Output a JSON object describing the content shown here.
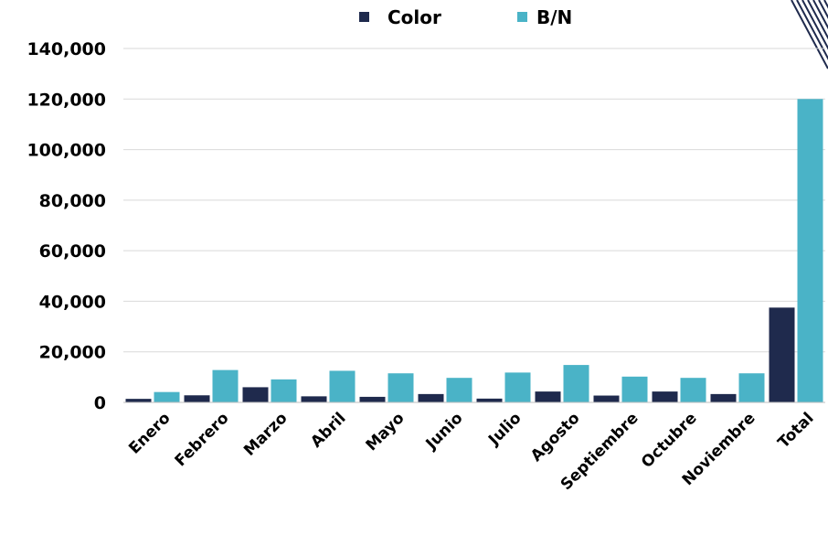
{
  "chart_data": {
    "type": "bar",
    "categories": [
      "Enero",
      "Febrero",
      "Marzo",
      "Abril",
      "Mayo",
      "Junio",
      "Julio",
      "Agosto",
      "Septiembre",
      "Octubre",
      "Noviembre",
      "Total"
    ],
    "series": [
      {
        "name": "Color",
        "color": "#1f2a4d",
        "values": [
          1400,
          2800,
          6000,
          2400,
          2200,
          3300,
          1500,
          4300,
          2700,
          4300,
          3300,
          37500
        ]
      },
      {
        "name": "B/N",
        "color": "#4ab3c7",
        "values": [
          4100,
          12800,
          9100,
          12500,
          11500,
          9700,
          11800,
          14800,
          10200,
          9700,
          11500,
          120000
        ]
      }
    ],
    "yticks": [
      "0",
      "20,000",
      "40,000",
      "60,000",
      "80,000",
      "100,000",
      "120,000",
      "140,000"
    ],
    "ylim": [
      0,
      140000
    ],
    "grid": true,
    "legend_position": "top-center",
    "title": "",
    "xlabel": "",
    "ylabel": ""
  }
}
